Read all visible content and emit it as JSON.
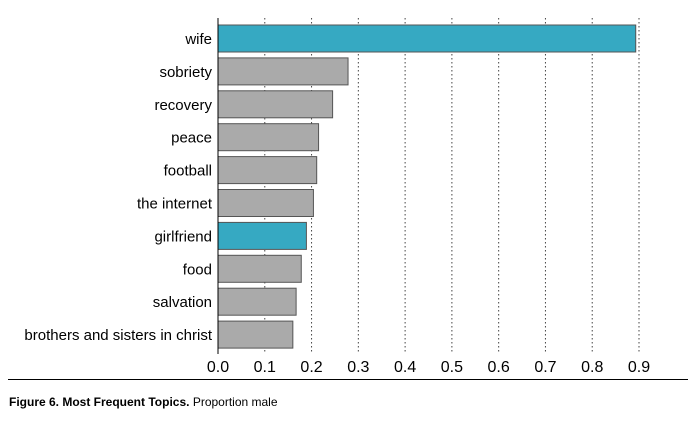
{
  "chart_data": {
    "type": "bar",
    "orientation": "horizontal",
    "categories": [
      "wife",
      "sobriety",
      "recovery",
      "peace",
      "football",
      "the internet",
      "girlfriend",
      "food",
      "salvation",
      "brothers and sisters in christ"
    ],
    "values": [
      0.893,
      0.278,
      0.245,
      0.215,
      0.211,
      0.204,
      0.189,
      0.178,
      0.167,
      0.16
    ],
    "highlighted": [
      "wife",
      "girlfriend"
    ],
    "colors": {
      "highlight": "#36a9c2",
      "default": "#aaaaaa",
      "edge": "#555555"
    },
    "xlim": [
      0,
      0.9
    ],
    "xticks": [
      "0.0",
      "0.1",
      "0.2",
      "0.3",
      "0.4",
      "0.5",
      "0.6",
      "0.7",
      "0.8",
      "0.9"
    ],
    "grid": "vertical dotted",
    "xlabel": "",
    "ylabel": ""
  },
  "caption": {
    "label": "Figure 6. Most Frequent Topics.",
    "text": "Proportion male"
  }
}
